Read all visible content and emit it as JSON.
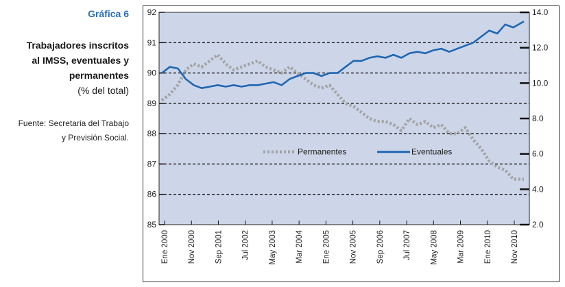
{
  "side_panel": {
    "figure_label": "Gráfica 6",
    "title_line1": "Trabajadores inscritos",
    "title_line2": "al IMSS, eventuales y",
    "title_line3": "permanentes",
    "units": "(% del total)",
    "source_line1": "Fuente: Secretaria del Trabajo",
    "source_line2": "y Previsión Social."
  },
  "chart_data": {
    "type": "line",
    "x_tick_labels": [
      "Ene 2000",
      "Nov 2000",
      "Sep 2001",
      "Jul 2002",
      "May 2003",
      "Mar 2004",
      "Ene 2005",
      "Nov 2005",
      "Sep 2006",
      "Jul 2007",
      "May 2008",
      "Mar 2009",
      "Ene 2010",
      "Nov 2010"
    ],
    "x_start": "2000-01",
    "x_end": "2011-05",
    "y_left": {
      "min": 85,
      "max": 92,
      "ticks": [
        85,
        86,
        87,
        88,
        89,
        90,
        91,
        92
      ]
    },
    "y_right": {
      "min": 2.0,
      "max": 14.0,
      "ticks": [
        "2.0",
        "4.0",
        "6.0",
        "8.0",
        "10.0",
        "12.0",
        "14.0"
      ]
    },
    "gridlines": "dashed horizontal",
    "legend": {
      "placement": "inside, center",
      "items": [
        "Permanentes",
        "Eventuales"
      ]
    },
    "colors": {
      "background": "#cdd6e9",
      "permanentes": "#a3a3a3",
      "eventuales": "#1f66b2",
      "grid": "#111111"
    },
    "series": [
      {
        "name": "Permanentes",
        "axis": "left",
        "style": "dotted-gray",
        "points": [
          [
            "2000-01",
            89.1
          ],
          [
            "2000-04",
            89.3
          ],
          [
            "2000-07",
            89.6
          ],
          [
            "2000-10",
            90.1
          ],
          [
            "2001-01",
            90.3
          ],
          [
            "2001-04",
            90.2
          ],
          [
            "2001-07",
            90.4
          ],
          [
            "2001-10",
            90.6
          ],
          [
            "2002-01",
            90.3
          ],
          [
            "2002-04",
            90.1
          ],
          [
            "2002-07",
            90.2
          ],
          [
            "2002-10",
            90.3
          ],
          [
            "2003-01",
            90.4
          ],
          [
            "2003-04",
            90.2
          ],
          [
            "2003-07",
            90.1
          ],
          [
            "2003-10",
            90.0
          ],
          [
            "2004-01",
            90.2
          ],
          [
            "2004-04",
            90.0
          ],
          [
            "2004-07",
            89.8
          ],
          [
            "2004-10",
            89.6
          ],
          [
            "2005-01",
            89.5
          ],
          [
            "2005-04",
            89.6
          ],
          [
            "2005-07",
            89.3
          ],
          [
            "2005-10",
            89.0
          ],
          [
            "2006-01",
            88.9
          ],
          [
            "2006-04",
            88.7
          ],
          [
            "2006-07",
            88.5
          ],
          [
            "2006-10",
            88.4
          ],
          [
            "2007-01",
            88.4
          ],
          [
            "2007-04",
            88.3
          ],
          [
            "2007-07",
            88.1
          ],
          [
            "2007-10",
            88.5
          ],
          [
            "2008-01",
            88.3
          ],
          [
            "2008-04",
            88.4
          ],
          [
            "2008-07",
            88.2
          ],
          [
            "2008-10",
            88.3
          ],
          [
            "2009-01",
            88.0
          ],
          [
            "2009-04",
            88.0
          ],
          [
            "2009-07",
            88.2
          ],
          [
            "2009-10",
            87.8
          ],
          [
            "2010-01",
            87.5
          ],
          [
            "2010-04",
            87.1
          ],
          [
            "2010-07",
            86.9
          ],
          [
            "2010-10",
            86.8
          ],
          [
            "2011-01",
            86.5
          ],
          [
            "2011-05",
            86.5
          ]
        ]
      },
      {
        "name": "Eventuales",
        "axis": "left",
        "style": "solid-blue",
        "points": [
          [
            "2000-01",
            90.0
          ],
          [
            "2000-04",
            90.2
          ],
          [
            "2000-07",
            90.15
          ],
          [
            "2000-10",
            89.8
          ],
          [
            "2001-01",
            89.6
          ],
          [
            "2001-04",
            89.5
          ],
          [
            "2001-07",
            89.55
          ],
          [
            "2001-10",
            89.6
          ],
          [
            "2002-01",
            89.55
          ],
          [
            "2002-04",
            89.6
          ],
          [
            "2002-07",
            89.55
          ],
          [
            "2002-10",
            89.6
          ],
          [
            "2003-01",
            89.6
          ],
          [
            "2003-04",
            89.65
          ],
          [
            "2003-07",
            89.7
          ],
          [
            "2003-10",
            89.6
          ],
          [
            "2004-01",
            89.8
          ],
          [
            "2004-04",
            89.9
          ],
          [
            "2004-07",
            90.0
          ],
          [
            "2004-10",
            90.0
          ],
          [
            "2005-01",
            89.9
          ],
          [
            "2005-04",
            90.0
          ],
          [
            "2005-07",
            90.0
          ],
          [
            "2005-10",
            90.2
          ],
          [
            "2006-01",
            90.4
          ],
          [
            "2006-04",
            90.4
          ],
          [
            "2006-07",
            90.5
          ],
          [
            "2006-10",
            90.55
          ],
          [
            "2007-01",
            90.5
          ],
          [
            "2007-04",
            90.6
          ],
          [
            "2007-07",
            90.5
          ],
          [
            "2007-10",
            90.65
          ],
          [
            "2008-01",
            90.7
          ],
          [
            "2008-04",
            90.65
          ],
          [
            "2008-07",
            90.75
          ],
          [
            "2008-10",
            90.8
          ],
          [
            "2009-01",
            90.7
          ],
          [
            "2009-04",
            90.8
          ],
          [
            "2009-07",
            90.9
          ],
          [
            "2009-10",
            91.0
          ],
          [
            "2010-01",
            91.2
          ],
          [
            "2010-04",
            91.4
          ],
          [
            "2010-07",
            91.3
          ],
          [
            "2010-10",
            91.6
          ],
          [
            "2011-01",
            91.5
          ],
          [
            "2011-05",
            91.7
          ]
        ]
      }
    ]
  }
}
